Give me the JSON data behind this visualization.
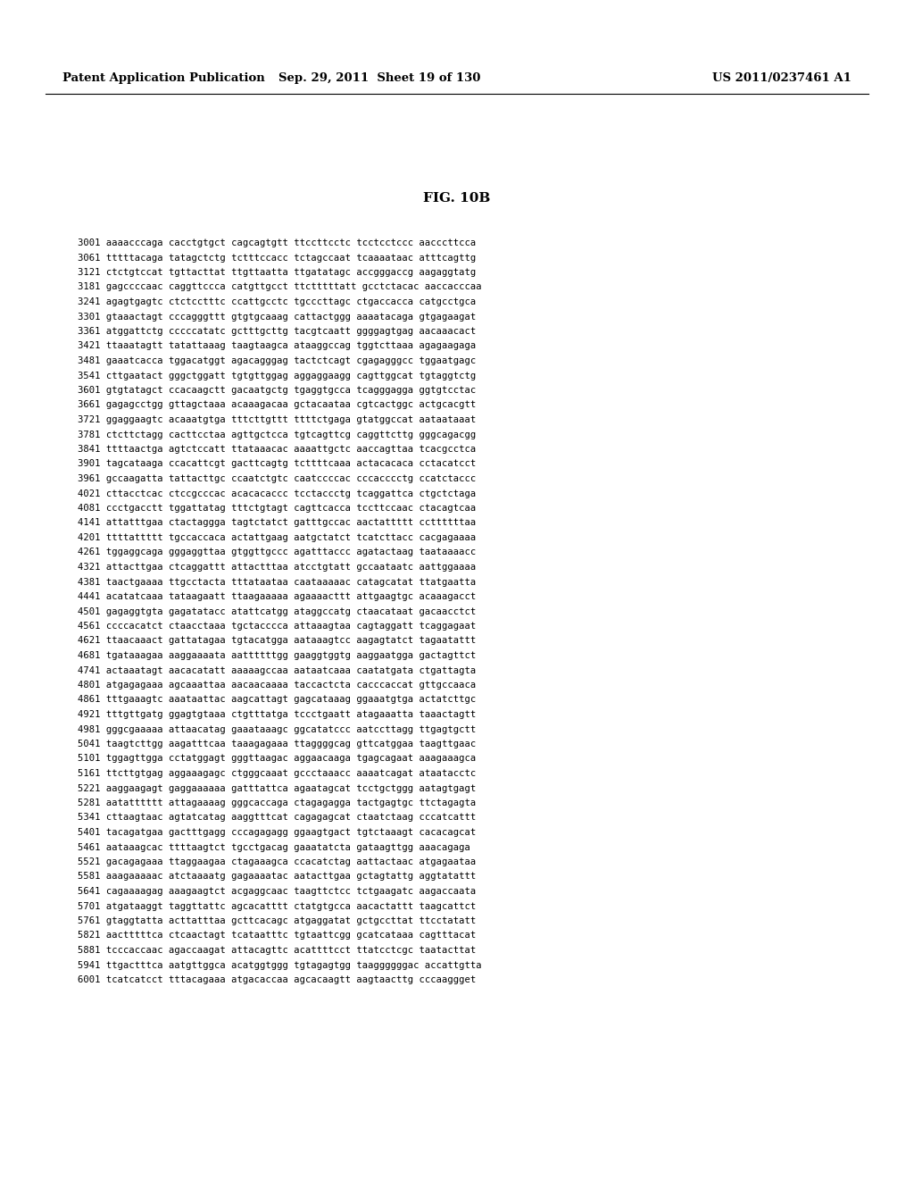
{
  "header_left": "Patent Application Publication",
  "header_mid": "Sep. 29, 2011  Sheet 19 of 130",
  "header_right": "US 2011/0237461 A1",
  "figure_label": "FIG. 10B",
  "background_color": "#ffffff",
  "text_color": "#000000",
  "header_fontsize": 9.5,
  "figure_label_fontsize": 11,
  "sequence_fontsize": 7.6,
  "sequences": [
    "3001 aaaacccaga cacctgtgct cagcagtgtt ttccttcctc tcctcctccc aacccttcca",
    "3061 tttttacaga tatagctctg tctttccacc tctagccaat tcaaaataac atttcagttg",
    "3121 ctctgtccat tgttacttat ttgttaatta ttgatatagc accgggaccg aagaggtatg",
    "3181 gagccccaac caggttccca catgttgcct ttctttttatt gcctctacac aaccacccaa",
    "3241 agagtgagtc ctctcctttc ccattgcctc tgcccttagc ctgaccacca catgcctgca",
    "3301 gtaaactagt cccagggttt gtgtgcaaag cattactggg aaaatacaga gtgagaagat",
    "3361 atggattctg cccccatatc gctttgcttg tacgtcaatt ggggagtgag aacaaacact",
    "3421 ttaaatagtt tatattaaag taagtaagca ataaggccag tggtcttaaa agagaagaga",
    "3481 gaaatcacca tggacatggt agacagggag tactctcagt cgagagggcc tggaatgagc",
    "3541 cttgaatact gggctggatt tgtgttggag aggaggaagg cagttggcat tgtaggtctg",
    "3601 gtgtatagct ccacaagctt gacaatgctg tgaggtgcca tcagggagga ggtgtcctac",
    "3661 gagagcctgg gttagctaaa acaaagacaa gctacaataa cgtcactggc actgcacgtt",
    "3721 ggaggaagtc acaaatgtga tttcttgttt ttttctgaga gtatggccat aataataaat",
    "3781 ctcttctagg cacttcctaa agttgctcca tgtcagttcg caggttcttg gggcagacgg",
    "3841 ttttaactga agtctccatt ttataaacac aaaattgctc aaccagttaa tcacgcctca",
    "3901 tagcataaga ccacattcgt gacttcagtg tcttttcaaa actacacaca cctacatcct",
    "3961 gccaagatta tattacttgc ccaatctgtc caatccccac cccacccctg ccatctaccc",
    "4021 cttacctcac ctccgcccac acacacaccc tcctaccctg tcaggattca ctgctctaga",
    "4081 ccctgacctt tggattatag tttctgtagt cagttcacca tccttccaac ctacagtcaa",
    "4141 attatttgaa ctactaggga tagtctatct gatttgccac aactattttt ccttttttaa",
    "4201 ttttattttt tgccaccaca actattgaag aatgctatct tcatcttacc cacgagaaaa",
    "4261 tggaggcaga gggaggttaa gtggttgccc agatttaccc agatactaag taataaaacc",
    "4321 attacttgaa ctcaggattt attactttaa atcctgtatt gccaataatc aattggaaaa",
    "4381 taactgaaaa ttgcctacta tttataataa caataaaaac catagcatat ttatgaatta",
    "4441 acatatcaaa tataagaatt ttaagaaaaa agaaaacttt attgaagtgc acaaagacct",
    "4501 gagaggtgta gagatatacc atattcatgg ataggccatg ctaacataat gacaacctct",
    "4561 ccccacatct ctaacctaaa tgctacccca attaaagtaa cagtaggatt tcaggagaat",
    "4621 ttaacaaact gattatagaa tgtacatgga aataaagtcc aagagtatct tagaatattt",
    "4681 tgataaagaa aaggaaaata aattttttgg gaaggtggtg aaggaatgga gactagttct",
    "4741 actaaatagt aacacatatt aaaaagccaa aataatcaaa caatatgata ctgattagta",
    "4801 atgagagaaa agcaaattaa aacaacaaaa taccactcta cacccaccat gttgccaaca",
    "4861 tttgaaagtc aaataattac aagcattagt gagcataaag ggaaatgtga actatcttgc",
    "4921 tttgttgatg ggagtgtaaa ctgtttatga tccctgaatt atagaaatta taaactagtt",
    "4981 gggcgaaaaa attaacatag gaaataaagc ggcatatccc aatccttagg ttgagtgctt",
    "5041 taagtcttgg aagatttcaa taaagagaaa ttaggggcag gttcatggaa taagttgaac",
    "5101 tggagttgga cctatggagt gggttaagac aggaacaaga tgagcagaat aaagaaagca",
    "5161 ttcttgtgag aggaaagagc ctgggcaaat gccctaaacc aaaatcagat ataatacctc",
    "5221 aaggaagagt gaggaaaaaa gatttattca agaatagcat tcctgctggg aatagtgagt",
    "5281 aatatttttt attagaaaag gggcaccaga ctagagagga tactgagtgc ttctagagta",
    "5341 cttaagtaac agtatcatag aaggtttcat cagagagcat ctaatctaag cccatcattt",
    "5401 tacagatgaa gactttgagg cccagagagg ggaagtgact tgtctaaagt cacacagcat",
    "5461 aataaagcac ttttaagtct tgcctgacag gaaatatcta gataagttgg aaacagaga",
    "5521 gacagagaaa ttaggaagaa ctagaaagca ccacatctag aattactaac atgagaataa",
    "5581 aaagaaaaac atctaaaatg gagaaaatac aatacttgaa gctagtattg aggtatattt",
    "5641 cagaaaagag aaagaagtct acgaggcaac taagttctcc tctgaagatc aagaccaata",
    "5701 atgataaggt taggttattc agcacatttt ctatgtgcca aacactattt taagcattct",
    "5761 gtaggtatta acttatttaa gcttcacagc atgaggatat gctgccttat ttcctatatt",
    "5821 aactttttca ctcaactagt tcataatttc tgtaattcgg gcatcataaa cagtttacat",
    "5881 tcccaccaac agaccaagat attacagttc acattttcct ttatcctcgc taatacttat",
    "5941 ttgactttca aatgttggca acatggtggg tgtagagtgg taaggggggac accattgtta",
    "6001 tcatcatcct tttacagaaa atgacaccaa agcacaagtt aagtaacttg cccaaggget"
  ]
}
